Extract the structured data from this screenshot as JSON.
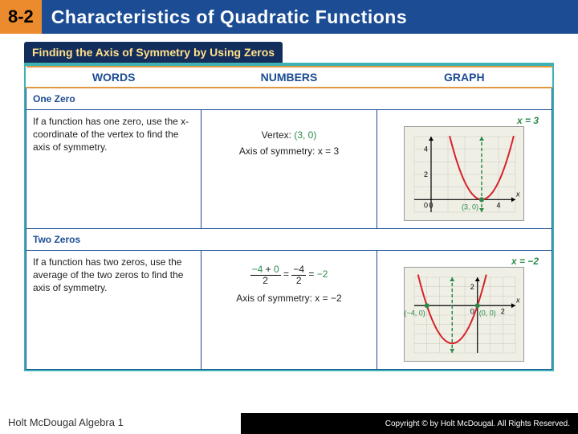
{
  "header": {
    "section_number": "8-2",
    "title": "Characteristics of Quadratic Functions"
  },
  "topic_title": "Finding the Axis of Symmetry by Using Zeros",
  "columns": {
    "c1": "WORDS",
    "c2": "NUMBERS",
    "c3": "GRAPH"
  },
  "rows": [
    {
      "label": "One Zero",
      "words": "If a function has one zero, use the x-coordinate of the vertex to find the axis of symmetry.",
      "numbers_line1": "Vertex: (3, 0)",
      "numbers_line2": "Axis of symmetry: x = 3",
      "graph_eq": "x = 3",
      "graph": {
        "type": "parabola",
        "w": 150,
        "h": 118,
        "xlim": [
          -1,
          5
        ],
        "ylim": [
          -1,
          5
        ],
        "xticks": [
          0,
          4
        ],
        "yticks": [
          2,
          4
        ],
        "vertex_x": 3,
        "vertex_y": 0,
        "a": 1.4,
        "curve_color": "#d6232a",
        "axis_of_sym_color": "#2b8a49",
        "vertex_label": "(3, 0)",
        "vertex_label_color": "#2b8a49",
        "zeros": [
          [
            3,
            0
          ]
        ],
        "grid_color": "#c9c9bd",
        "axis_color": "#000",
        "bg": "#efefe6"
      }
    },
    {
      "label": "Two Zeros",
      "words": "If a function has two zeros, use the average of the two zeros to find the axis of symmetry.",
      "numbers_html": "<span style='position:relative;display:inline-block;vertical-align:middle'><span style='border-bottom:1px solid #000;padding:0 2px'><span style='color:#2b8a49'>−4</span> + <span style='color:#2b8a49'>0</span></span><br><span>2</span></span> = <span style='position:relative;display:inline-block;vertical-align:middle'><span style='border-bottom:1px solid #000;padding:0 2px'>−4</span><br><span>2</span></span> = <span style='color:#2b8a49'>−2</span>",
      "numbers_line2": "Axis of symmetry: x = −2",
      "graph_eq": "x = −2",
      "graph": {
        "type": "parabola",
        "w": 150,
        "h": 118,
        "xlim": [
          -5,
          3
        ],
        "ylim": [
          -5,
          3
        ],
        "xticks": [
          2
        ],
        "yticks": [
          2
        ],
        "vertex_x": -2,
        "vertex_y": -4,
        "a": 1.0,
        "curve_color": "#d6232a",
        "axis_of_sym_color": "#2b8a49",
        "zeros": [
          [
            -4,
            0
          ],
          [
            0,
            0
          ]
        ],
        "zero_labels": [
          "(−4, 0)",
          "(0, 0)"
        ],
        "grid_color": "#c9c9bd",
        "axis_color": "#000",
        "bg": "#efefe6"
      }
    }
  ],
  "footer": {
    "left": "Holt McDougal Algebra 1",
    "right": "Copyright © by Holt McDougal. All Rights Reserved."
  }
}
